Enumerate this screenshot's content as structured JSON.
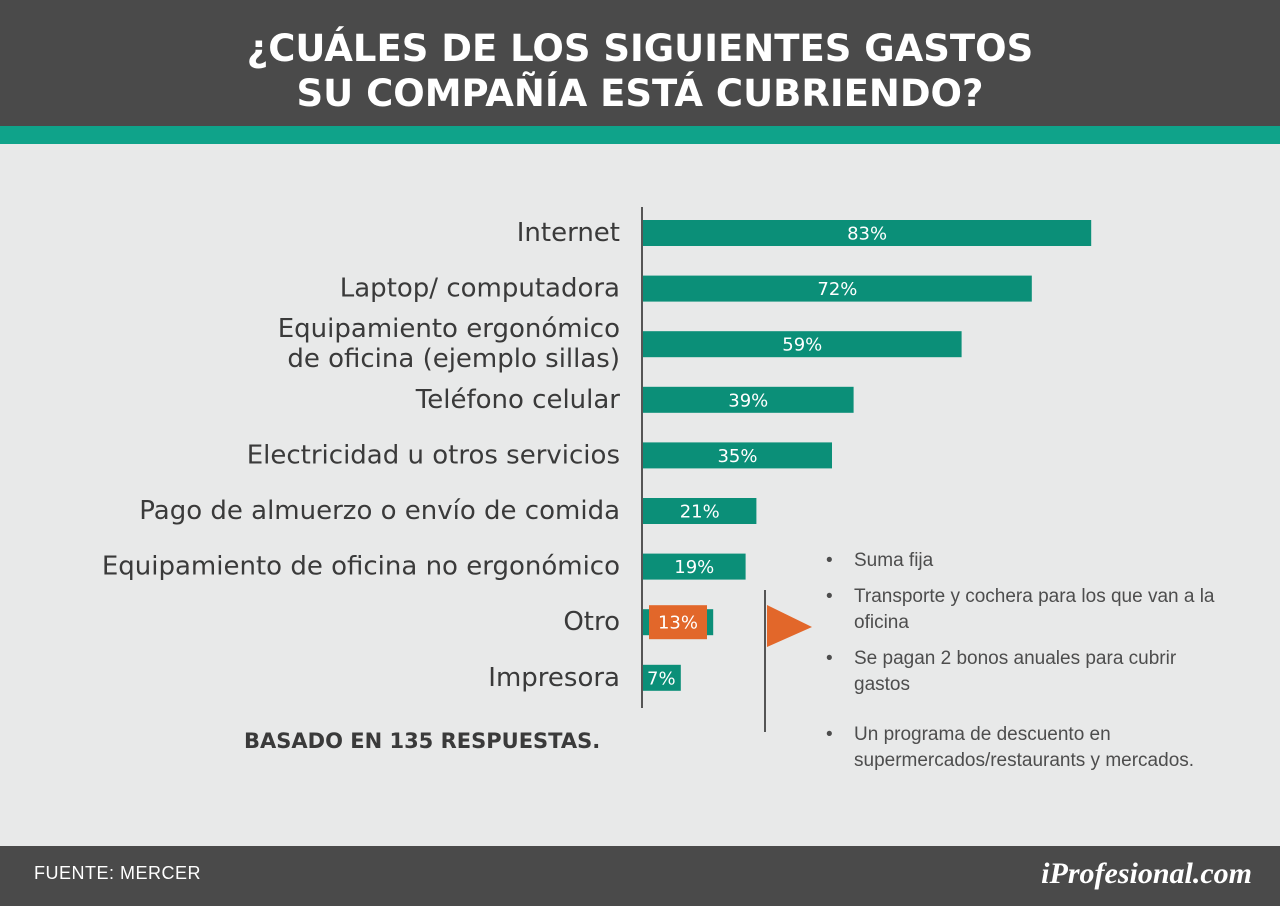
{
  "header": {
    "title_line1": "¿CUÁLES DE LOS SIGUIENTES GASTOS",
    "title_line2": "SU COMPAÑÍA ESTÁ CUBRIENDO?"
  },
  "chart_data": {
    "type": "bar",
    "orientation": "horizontal",
    "categories": [
      [
        "Internet"
      ],
      [
        "Laptop/ computadora"
      ],
      [
        "Equipamiento ergonómico",
        "de oficina (ejemplo sillas)"
      ],
      [
        "Teléfono celular"
      ],
      [
        "Electricidad u otros servicios"
      ],
      [
        "Pago de almuerzo o envío de comida"
      ],
      [
        "Equipamiento de oficina no ergonómico"
      ],
      [
        "Otro"
      ],
      [
        "Impresora"
      ]
    ],
    "values": [
      83,
      72,
      59,
      39,
      35,
      21,
      19,
      13,
      7
    ],
    "value_labels": [
      "83%",
      "72%",
      "59%",
      "39%",
      "35%",
      "21%",
      "19%",
      "13%",
      "7%"
    ],
    "unit": "%",
    "xlim": [
      0,
      100
    ],
    "grid": false,
    "legend": "none",
    "highlight_index": 7
  },
  "colors": {
    "bar": "#0b8f78",
    "highlight": "#e2672a",
    "accent_band": "#0fa38a",
    "header": "#4a4a4a"
  },
  "note": "BASADO EN 135 RESPUESTAS.",
  "other_details": {
    "bullet": "•",
    "items": [
      "Suma fija",
      "Transporte y cochera para los que van a la oficina",
      "Se pagan 2 bonos anuales para cubrir gastos",
      "Un programa de descuento en supermercados/restaurants y mercados."
    ],
    "flag_icon": "flag-icon"
  },
  "footer": {
    "source": "FUENTE: MERCER",
    "logo": "iProfesional.com"
  }
}
